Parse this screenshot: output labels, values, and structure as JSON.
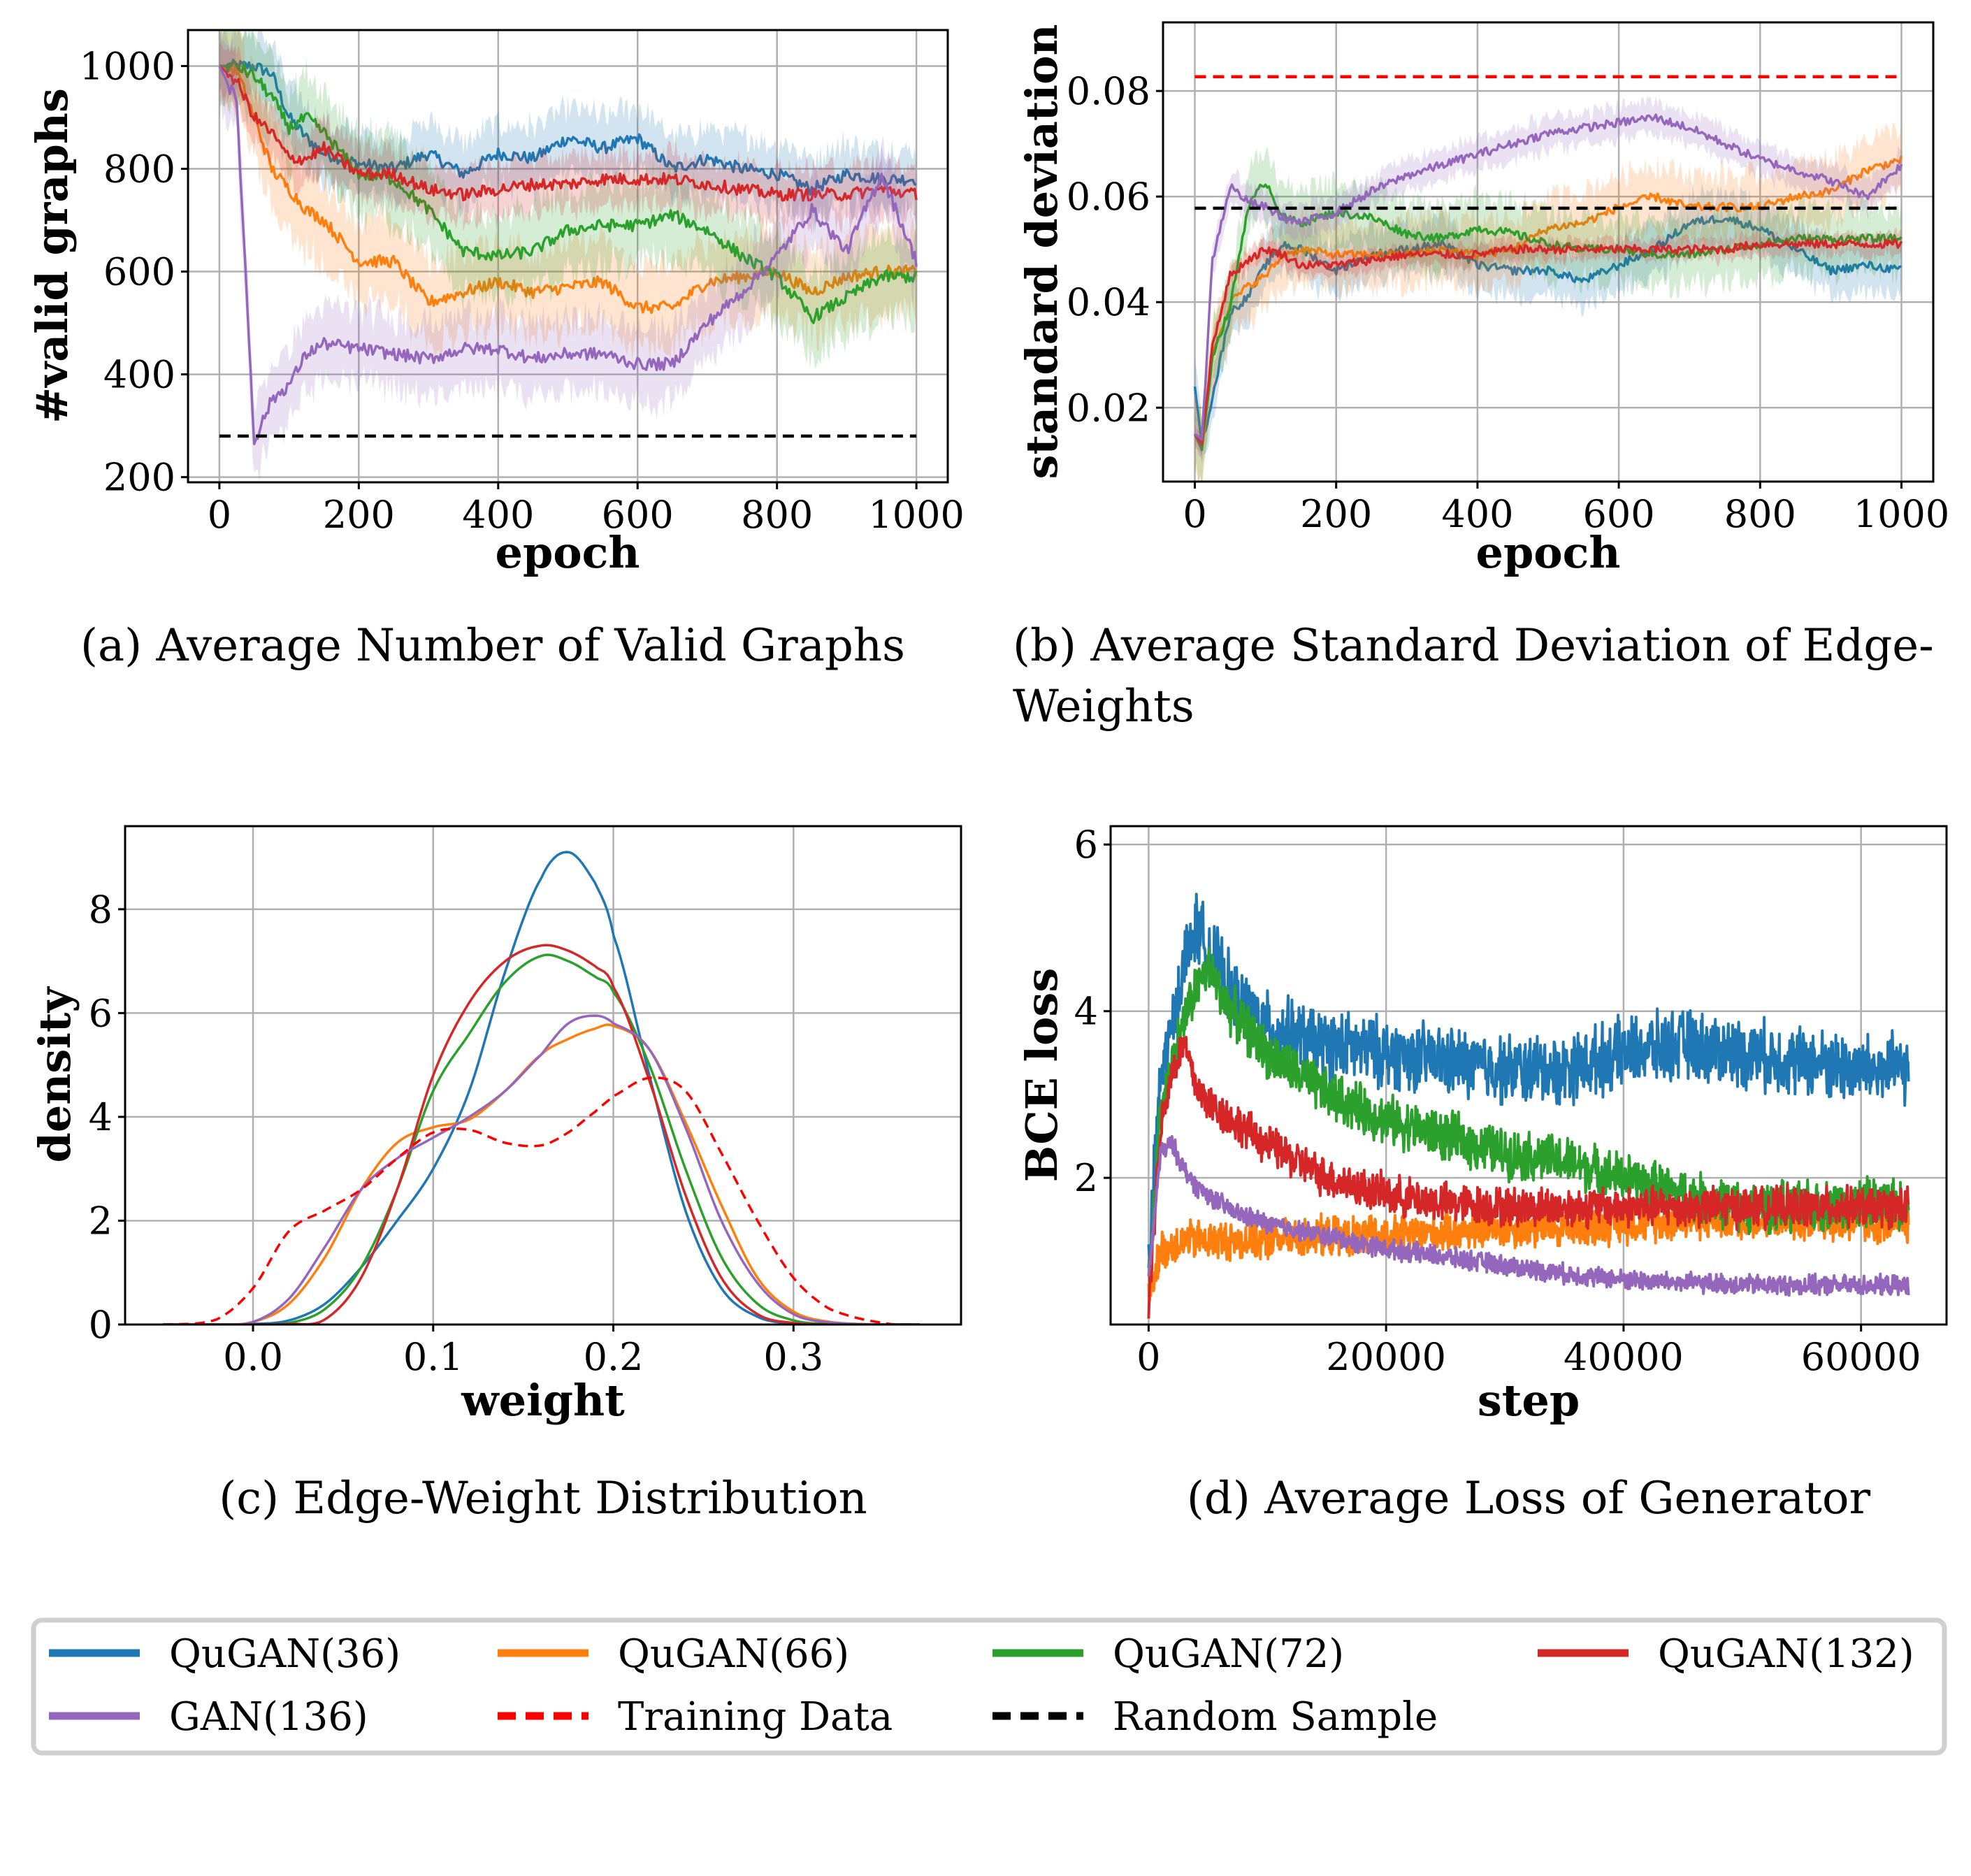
{
  "series_styles": {
    "QuGAN(36)": "#1f77b4",
    "QuGAN(66)": "#ff7f0e",
    "QuGAN(72)": "#2ca02c",
    "QuGAN(132)": "#d62728",
    "GAN(136)": "#9467bd",
    "Training Data": "#ff0000",
    "Random Sample": "#000000"
  },
  "legend": {
    "items": [
      {
        "label": "QuGAN(36)",
        "color": "#1f77b4",
        "style": "solid"
      },
      {
        "label": "QuGAN(66)",
        "color": "#ff7f0e",
        "style": "solid"
      },
      {
        "label": "QuGAN(72)",
        "color": "#2ca02c",
        "style": "solid"
      },
      {
        "label": "QuGAN(132)",
        "color": "#d62728",
        "style": "solid"
      },
      {
        "label": "GAN(136)",
        "color": "#9467bd",
        "style": "solid"
      },
      {
        "label": "Training Data",
        "color": "#ff0000",
        "style": "dashed"
      },
      {
        "label": "Random Sample",
        "color": "#000000",
        "style": "dashed"
      }
    ]
  },
  "chart_data": [
    {
      "id": "a",
      "type": "line",
      "caption": "(a) Average Number of Valid Graphs",
      "xlabel": "epoch",
      "ylabel": "#valid graphs",
      "xlim": [
        -45,
        1045
      ],
      "ylim": [
        190,
        1070
      ],
      "xticks": [
        0,
        200,
        400,
        600,
        800,
        1000
      ],
      "yticks": [
        200,
        400,
        600,
        800,
        1000
      ],
      "grid": true,
      "x": [
        0,
        25,
        50,
        75,
        100,
        125,
        150,
        200,
        250,
        300,
        350,
        400,
        450,
        500,
        550,
        600,
        650,
        700,
        750,
        800,
        850,
        900,
        950,
        1000
      ],
      "series": [
        {
          "name": "QuGAN(36)",
          "values": [
            1000,
            1000,
            1000,
            985,
            900,
            860,
            830,
            810,
            800,
            830,
            790,
            830,
            820,
            860,
            840,
            860,
            800,
            820,
            800,
            790,
            760,
            790,
            780,
            780
          ],
          "band": 60
        },
        {
          "name": "QuGAN(66)",
          "values": [
            1000,
            990,
            900,
            800,
            760,
            720,
            700,
            620,
            620,
            540,
            560,
            580,
            560,
            570,
            580,
            530,
            530,
            580,
            590,
            600,
            560,
            590,
            600,
            600
          ],
          "band": 80
        },
        {
          "name": "QuGAN(72)",
          "values": [
            1000,
            1000,
            980,
            940,
            880,
            900,
            870,
            790,
            780,
            720,
            640,
            630,
            640,
            680,
            690,
            690,
            710,
            680,
            630,
            590,
            510,
            550,
            590,
            590
          ],
          "band": 80
        },
        {
          "name": "QuGAN(132)",
          "values": [
            1000,
            970,
            900,
            870,
            820,
            820,
            840,
            790,
            790,
            760,
            750,
            760,
            770,
            770,
            780,
            780,
            780,
            770,
            760,
            750,
            750,
            750,
            760,
            750
          ],
          "band": 50
        },
        {
          "name": "GAN(136)",
          "values": [
            1000,
            930,
            270,
            350,
            380,
            440,
            460,
            450,
            440,
            430,
            450,
            450,
            430,
            440,
            440,
            420,
            420,
            500,
            560,
            630,
            720,
            640,
            790,
            620
          ],
          "band": 70
        }
      ],
      "reference_lines": [
        {
          "name": "Random Sample",
          "value": 280,
          "x_range": [
            0,
            1000
          ]
        }
      ]
    },
    {
      "id": "b",
      "type": "line",
      "caption": "(b) Average Standard Deviation of Edge-Weights",
      "xlabel": "epoch",
      "ylabel": "standard deviation",
      "xlim": [
        -45,
        1045
      ],
      "ylim": [
        0.006,
        0.093
      ],
      "xticks": [
        0,
        200,
        400,
        600,
        800,
        1000
      ],
      "yticks": [
        0.02,
        0.04,
        0.06,
        0.08
      ],
      "grid": true,
      "x": [
        0,
        10,
        25,
        50,
        75,
        100,
        125,
        150,
        200,
        250,
        300,
        350,
        400,
        450,
        500,
        550,
        600,
        650,
        700,
        750,
        800,
        850,
        900,
        950,
        1000
      ],
      "series": [
        {
          "name": "QuGAN(36)",
          "values": [
            0.024,
            0.013,
            0.022,
            0.038,
            0.041,
            0.047,
            0.051,
            0.05,
            0.046,
            0.049,
            0.05,
            0.051,
            0.047,
            0.046,
            0.046,
            0.044,
            0.047,
            0.05,
            0.055,
            0.056,
            0.054,
            0.05,
            0.046,
            0.047,
            0.046
          ],
          "band": 0.005
        },
        {
          "name": "QuGAN(66)",
          "values": [
            0.015,
            0.012,
            0.03,
            0.04,
            0.043,
            0.045,
            0.049,
            0.05,
            0.049,
            0.049,
            0.049,
            0.05,
            0.049,
            0.05,
            0.054,
            0.055,
            0.058,
            0.06,
            0.058,
            0.058,
            0.058,
            0.06,
            0.061,
            0.065,
            0.067
          ],
          "band": 0.006
        },
        {
          "name": "QuGAN(72)",
          "values": [
            0.015,
            0.012,
            0.03,
            0.039,
            0.058,
            0.063,
            0.056,
            0.055,
            0.057,
            0.056,
            0.053,
            0.052,
            0.054,
            0.053,
            0.051,
            0.05,
            0.05,
            0.049,
            0.049,
            0.05,
            0.051,
            0.052,
            0.052,
            0.052,
            0.052
          ],
          "band": 0.006
        },
        {
          "name": "QuGAN(132)",
          "values": [
            0.015,
            0.013,
            0.032,
            0.045,
            0.048,
            0.05,
            0.049,
            0.047,
            0.047,
            0.048,
            0.049,
            0.049,
            0.049,
            0.05,
            0.05,
            0.05,
            0.05,
            0.05,
            0.05,
            0.05,
            0.051,
            0.051,
            0.051,
            0.051,
            0.051
          ],
          "band": 0.002
        },
        {
          "name": "GAN(136)",
          "values": [
            0.015,
            0.014,
            0.048,
            0.062,
            0.059,
            0.058,
            0.056,
            0.055,
            0.057,
            0.061,
            0.064,
            0.066,
            0.068,
            0.07,
            0.072,
            0.073,
            0.074,
            0.075,
            0.073,
            0.07,
            0.067,
            0.065,
            0.063,
            0.06,
            0.066
          ],
          "band": 0.003
        }
      ],
      "reference_lines": [
        {
          "name": "Training Data",
          "value": 0.0827,
          "x_range": [
            0,
            1000
          ]
        },
        {
          "name": "Random Sample",
          "value": 0.0578,
          "x_range": [
            0,
            1000
          ]
        }
      ]
    },
    {
      "id": "c",
      "type": "line",
      "caption": "(c) Edge-Weight Distribution",
      "xlabel": "weight",
      "ylabel": "density",
      "xlim": [
        -0.071,
        0.393
      ],
      "ylim": [
        0,
        9.6
      ],
      "xticks": [
        0.0,
        0.1,
        0.2,
        0.3
      ],
      "yticks": [
        0,
        2,
        4,
        6,
        8
      ],
      "grid": true,
      "x": [
        -0.05,
        -0.02,
        0.0,
        0.02,
        0.04,
        0.06,
        0.08,
        0.1,
        0.12,
        0.14,
        0.16,
        0.175,
        0.19,
        0.2,
        0.22,
        0.24,
        0.26,
        0.28,
        0.3,
        0.32,
        0.35,
        0.37
      ],
      "series": [
        {
          "name": "QuGAN(36)",
          "values": [
            0,
            0,
            0.01,
            0.08,
            0.4,
            1.1,
            2.0,
            3.0,
            4.5,
            6.8,
            8.6,
            9.1,
            8.5,
            7.5,
            4.8,
            2.2,
            0.7,
            0.15,
            0.02,
            0,
            0,
            0
          ]
        },
        {
          "name": "QuGAN(66)",
          "values": [
            0,
            0,
            0.05,
            0.4,
            1.3,
            2.6,
            3.5,
            3.8,
            3.95,
            4.5,
            5.2,
            5.5,
            5.7,
            5.75,
            5.3,
            3.9,
            2.3,
            0.9,
            0.25,
            0.05,
            0,
            0
          ]
        },
        {
          "name": "QuGAN(72)",
          "values": [
            0,
            0,
            0,
            0.03,
            0.3,
            1.1,
            2.6,
            4.5,
            5.6,
            6.6,
            7.1,
            7.0,
            6.7,
            6.4,
            5.0,
            3.0,
            1.3,
            0.4,
            0.08,
            0.01,
            0,
            0
          ]
        },
        {
          "name": "QuGAN(132)",
          "values": [
            0,
            0,
            0,
            0.01,
            0.1,
            0.9,
            2.6,
            4.8,
            6.2,
            7.0,
            7.3,
            7.2,
            6.9,
            6.5,
            4.7,
            2.5,
            0.9,
            0.2,
            0.03,
            0,
            0,
            0
          ]
        },
        {
          "name": "GAN(136)",
          "values": [
            0,
            0,
            0.05,
            0.5,
            1.5,
            2.6,
            3.2,
            3.6,
            4.0,
            4.5,
            5.2,
            5.8,
            5.95,
            5.8,
            5.3,
            3.8,
            2.0,
            0.8,
            0.2,
            0.04,
            0,
            0
          ]
        },
        {
          "name": "Training Data",
          "dashed": true,
          "values": [
            0,
            0.1,
            0.7,
            1.8,
            2.2,
            2.6,
            3.2,
            3.7,
            3.75,
            3.5,
            3.45,
            3.7,
            4.1,
            4.4,
            4.75,
            4.5,
            3.3,
            2.0,
            0.9,
            0.3,
            0.03,
            0
          ]
        }
      ]
    },
    {
      "id": "d",
      "type": "line",
      "caption": "(d) Average Loss of Generator",
      "xlabel": "step",
      "ylabel": "BCE loss",
      "xlim": [
        -3200,
        67200
      ],
      "ylim": [
        0.24,
        6.22
      ],
      "xticks": [
        0,
        20000,
        40000,
        60000
      ],
      "yticks": [
        2,
        4,
        6
      ],
      "grid": true,
      "noisy": true,
      "x": [
        0,
        1000,
        2000,
        3000,
        4000,
        5000,
        7000,
        10000,
        15000,
        20000,
        25000,
        30000,
        35000,
        40000,
        45000,
        50000,
        55000,
        60000,
        64000
      ],
      "series": [
        {
          "name": "QuGAN(36)",
          "values": [
            0.9,
            3.2,
            3.8,
            4.6,
            5.0,
            4.8,
            4.2,
            3.8,
            3.6,
            3.5,
            3.4,
            3.3,
            3.3,
            3.5,
            3.6,
            3.5,
            3.4,
            3.3,
            3.3
          ],
          "noise": 0.35
        },
        {
          "name": "QuGAN(66)",
          "values": [
            0.6,
            1.1,
            1.2,
            1.25,
            1.25,
            1.25,
            1.25,
            1.25,
            1.3,
            1.3,
            1.35,
            1.4,
            1.4,
            1.45,
            1.5,
            1.5,
            1.5,
            1.45,
            1.45
          ],
          "noise": 0.2
        },
        {
          "name": "QuGAN(72)",
          "values": [
            0.7,
            2.8,
            3.4,
            3.9,
            4.3,
            4.5,
            4.0,
            3.5,
            3.0,
            2.7,
            2.5,
            2.3,
            2.2,
            2.0,
            1.8,
            1.65,
            1.65,
            1.7,
            1.7
          ],
          "noise": 0.25
        },
        {
          "name": "QuGAN(132)",
          "values": [
            0.5,
            2.6,
            3.3,
            3.6,
            3.1,
            2.9,
            2.7,
            2.4,
            2.0,
            1.8,
            1.7,
            1.65,
            1.65,
            1.65,
            1.65,
            1.65,
            1.65,
            1.65,
            1.65
          ],
          "noise": 0.2
        },
        {
          "name": "GAN(136)",
          "values": [
            0.8,
            2.3,
            2.4,
            2.1,
            1.9,
            1.8,
            1.6,
            1.45,
            1.3,
            1.15,
            1.05,
            0.95,
            0.85,
            0.78,
            0.74,
            0.72,
            0.71,
            0.71,
            0.71
          ],
          "noise": 0.1
        }
      ]
    }
  ]
}
